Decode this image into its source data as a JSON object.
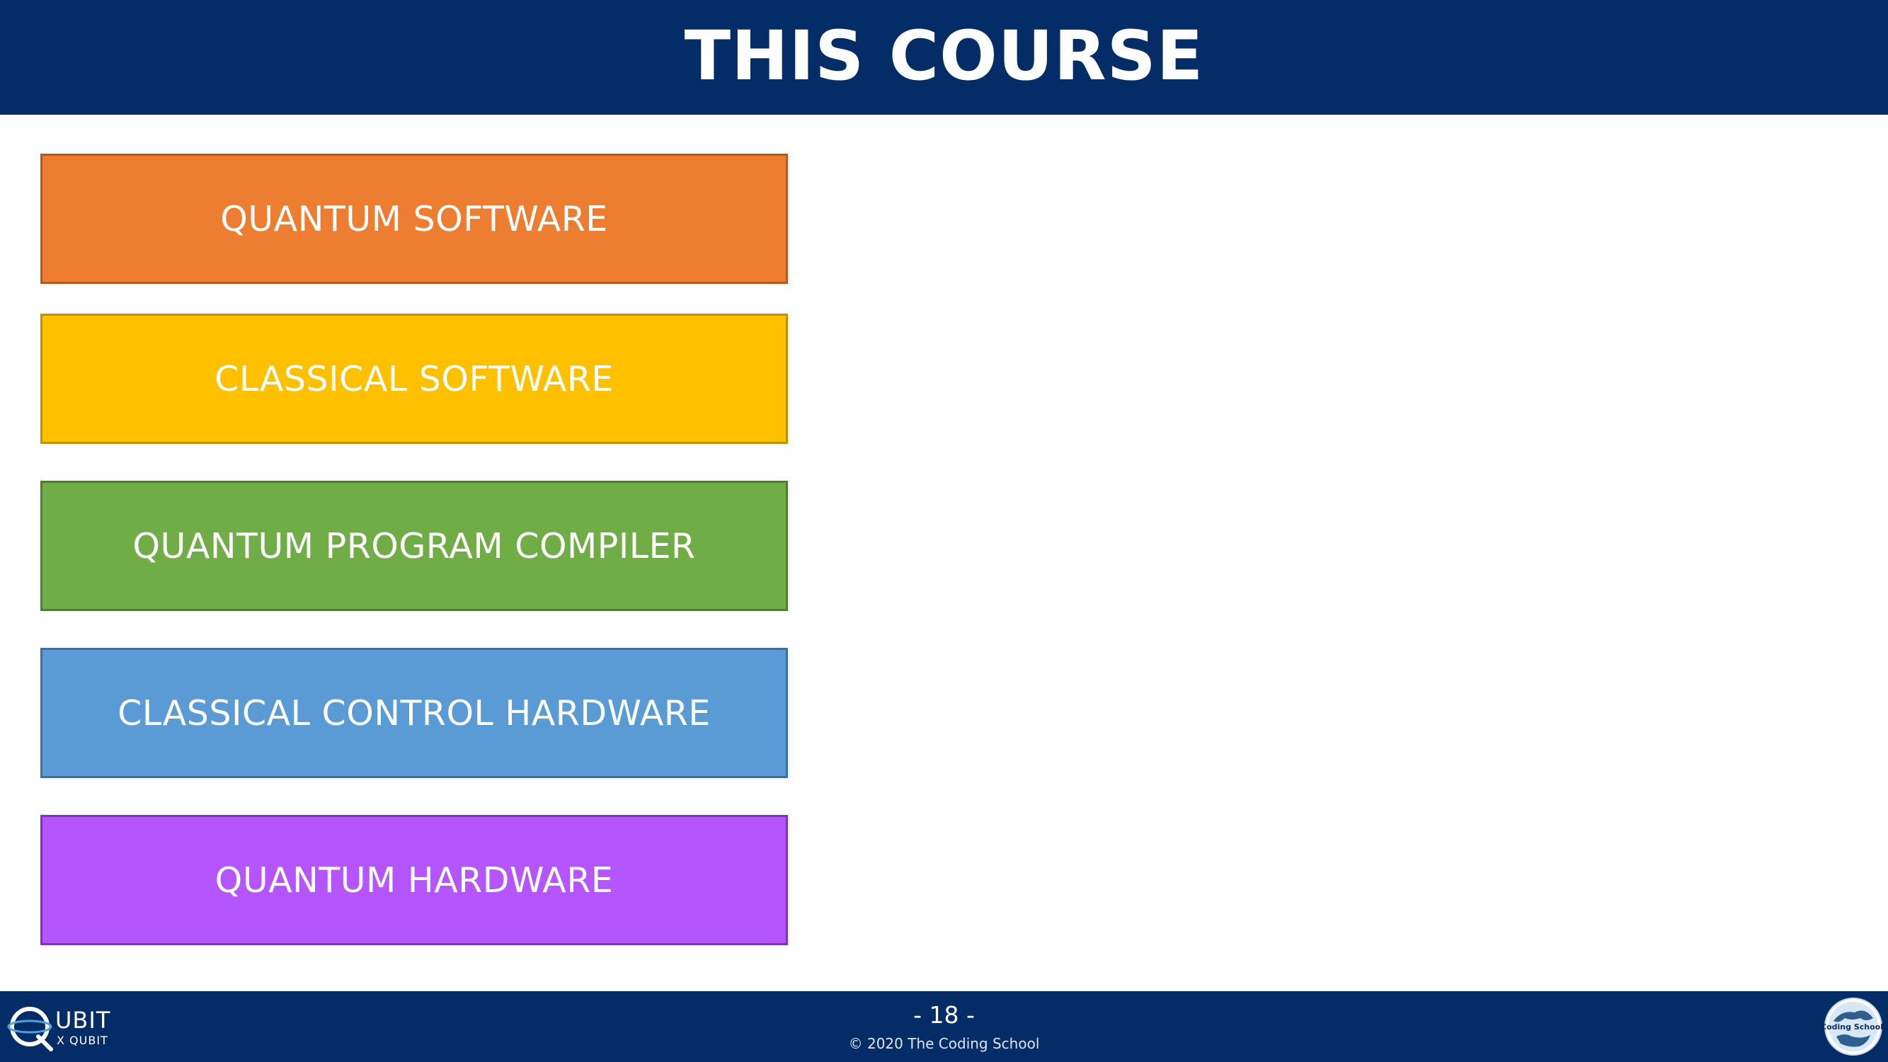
{
  "header": {
    "title": "THIS COURSE"
  },
  "stack": [
    {
      "label": "QUANTUM SOFTWARE",
      "color": "#ed7d31"
    },
    {
      "label": "CLASSICAL SOFTWARE",
      "color": "#ffc000"
    },
    {
      "label": "QUANTUM PROGRAM COMPILER",
      "color": "#70ad47"
    },
    {
      "label": "CLASSICAL CONTROL HARDWARE",
      "color": "#5b9bd5"
    },
    {
      "label": "QUANTUM HARDWARE",
      "color": "#b455ff"
    }
  ],
  "footer": {
    "page_number": "- 18 -",
    "copyright": "© 2020 The Coding School",
    "left_logo": {
      "icon": "qubit-by-qubit-logo",
      "word_top": "UBIT",
      "word_bottom": "X QUBIT"
    },
    "right_logo": {
      "icon": "the-coding-school-logo",
      "text": "<Coding School/>"
    }
  },
  "colors": {
    "header_footer_bg": "#042d68",
    "background": "#ffffff"
  }
}
